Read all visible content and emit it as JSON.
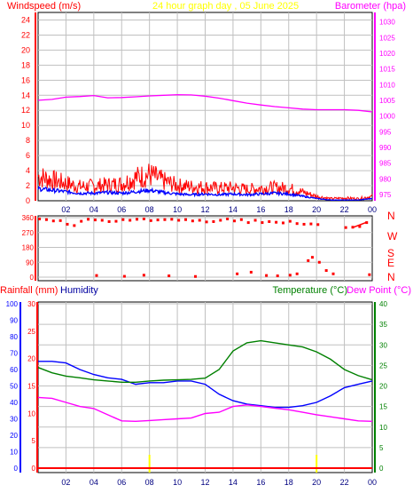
{
  "header": {
    "title": "24 hour graph day , 05 June 2025",
    "left_label": "Windspeed (m/s)",
    "right_label": "Barometer (hpa)"
  },
  "wind_dir_labels": [
    "N",
    "W",
    "S",
    "E",
    "N"
  ],
  "lower_header": {
    "rainfall": "Rainfall (mm)",
    "humidity": "Humidity",
    "temperature": "Temperature (°C)",
    "dew_point": "Dew Point (°C)"
  },
  "colors": {
    "windspeed": "#ff0000",
    "wind_avg": "#0000ff",
    "barometer": "#ff00ff",
    "wind_dir": "#ff0000",
    "rainfall": "#ff0000",
    "humidity": "#0000ff",
    "temperature": "#008000",
    "dew_point": "#ff00ff",
    "marker": "#ffff00"
  },
  "chart_data": [
    {
      "type": "line",
      "title": "24 hour graph day , 05 June 2025",
      "x_ticks": [
        "02",
        "04",
        "06",
        "08",
        "10",
        "12",
        "14",
        "16",
        "18",
        "20",
        "22",
        "00"
      ],
      "y_left": {
        "label": "Windspeed (m/s)",
        "ticks": [
          0,
          2,
          4,
          6,
          8,
          10,
          12,
          14,
          16,
          18,
          20,
          22,
          24
        ],
        "ylim": [
          0,
          25
        ]
      },
      "y_right": {
        "label": "Barometer (hpa)",
        "ticks": [
          975,
          980,
          985,
          990,
          995,
          1000,
          1005,
          1010,
          1015,
          1020,
          1025,
          1030
        ],
        "ylim": [
          973,
          1033
        ]
      },
      "grid": true,
      "series": [
        {
          "name": "Windspeed (m/s)",
          "axis": "left",
          "x": [
            0,
            1,
            2,
            3,
            4,
            5,
            6,
            7,
            8,
            9,
            10,
            11,
            12,
            13,
            14,
            15,
            16,
            17,
            18,
            19,
            20,
            21,
            22,
            23,
            24
          ],
          "y": [
            4.5,
            3.8,
            3.2,
            2.6,
            2.7,
            2.9,
            3.1,
            4.2,
            4.8,
            3.6,
            2.8,
            2.6,
            2.5,
            2.3,
            2.4,
            2.1,
            2.3,
            2.4,
            2.3,
            1.6,
            0.8,
            0.4,
            0.5,
            0.4,
            0.8
          ]
        },
        {
          "name": "Wind average",
          "axis": "left",
          "x": [
            0,
            1,
            2,
            3,
            4,
            5,
            6,
            7,
            8,
            9,
            10,
            11,
            12,
            13,
            14,
            15,
            16,
            17,
            18,
            19,
            20,
            21,
            22,
            23,
            24
          ],
          "y": [
            1.6,
            1.4,
            1.2,
            1.0,
            1.0,
            1.1,
            1.0,
            1.2,
            1.4,
            1.1,
            0.9,
            0.8,
            0.9,
            0.8,
            0.9,
            0.8,
            0.9,
            1.0,
            0.9,
            0.6,
            0.3,
            0.1,
            0.1,
            0.1,
            0.3
          ]
        },
        {
          "name": "Barometer (hpa)",
          "axis": "right",
          "x": [
            0,
            1,
            2,
            3,
            4,
            5,
            6,
            7,
            8,
            9,
            10,
            11,
            12,
            13,
            14,
            15,
            16,
            17,
            18,
            19,
            20,
            21,
            22,
            23,
            24
          ],
          "y": [
            1005.0,
            1005.3,
            1006.0,
            1006.2,
            1006.5,
            1005.8,
            1005.9,
            1006.1,
            1006.4,
            1006.6,
            1006.8,
            1006.7,
            1006.3,
            1005.7,
            1004.9,
            1004.1,
            1003.5,
            1003.0,
            1002.6,
            1002.2,
            1002.0,
            1002.0,
            1002.0,
            1001.8,
            1001.3
          ]
        }
      ]
    },
    {
      "type": "scatter",
      "title": "",
      "x_ticks": [
        "02",
        "04",
        "06",
        "08",
        "10",
        "12",
        "14",
        "16",
        "18",
        "20",
        "22",
        "00"
      ],
      "y_left": {
        "ticks": [
          0,
          90,
          180,
          270,
          360
        ],
        "ylim": [
          0,
          360
        ]
      },
      "y_right_labels": [
        "N",
        "W",
        "S",
        "E",
        "N"
      ],
      "grid": true,
      "series": [
        {
          "name": "Wind direction",
          "x": [
            0.1,
            0.6,
            1.1,
            1.6,
            2.1,
            2.6,
            3.1,
            3.6,
            4.1,
            4.6,
            5.1,
            5.6,
            6.1,
            6.6,
            7.1,
            7.6,
            8.1,
            8.6,
            9.1,
            9.6,
            10.1,
            10.6,
            11.1,
            11.6,
            12.1,
            12.6,
            13.1,
            13.6,
            14.1,
            14.6,
            15.1,
            15.6,
            16.1,
            16.6,
            17.1,
            17.6,
            18.1,
            18.6,
            19.1,
            19.6,
            20.1,
            22.1,
            22.6,
            23.1,
            23.6,
            14.3,
            15.3,
            16.4,
            17.2,
            18.1,
            18.6,
            19.4,
            19.7,
            20.2,
            20.7,
            21.2,
            23.8,
            4.2,
            6.2,
            7.6,
            9.4,
            11.3
          ],
          "y": [
            352,
            348,
            340,
            342,
            320,
            312,
            338,
            350,
            346,
            344,
            336,
            338,
            348,
            344,
            350,
            352,
            342,
            346,
            348,
            350,
            344,
            348,
            340,
            344,
            334,
            336,
            344,
            352,
            340,
            348,
            330,
            344,
            330,
            336,
            332,
            328,
            338,
            324,
            320,
            322,
            318,
            300,
            302,
            306,
            330,
            20,
            30,
            10,
            8,
            12,
            20,
            100,
            120,
            90,
            40,
            20,
            15,
            10,
            5,
            12,
            8,
            4
          ]
        }
      ]
    },
    {
      "type": "line",
      "title": "",
      "x_ticks": [
        "02",
        "04",
        "06",
        "08",
        "10",
        "12",
        "14",
        "16",
        "18",
        "20",
        "22",
        "00"
      ],
      "y_rain": {
        "label": "Rainfall (mm)",
        "ticks": [
          0,
          5,
          10,
          15,
          20,
          25,
          30
        ],
        "ylim": [
          0,
          30
        ]
      },
      "y_humidity": {
        "label": "Humidity",
        "ticks": [
          0,
          10,
          20,
          30,
          40,
          50,
          60,
          70,
          80,
          90,
          100
        ],
        "ylim": [
          0,
          100
        ]
      },
      "y_temp": {
        "label": "Temperature (°C)",
        "ticks": [
          0,
          5,
          10,
          15,
          20,
          25,
          30,
          35,
          40
        ],
        "ylim": [
          0,
          40
        ]
      },
      "grid": true,
      "series": [
        {
          "name": "Humidity",
          "axis": "humidity",
          "x": [
            0,
            1,
            2,
            3,
            4,
            5,
            6,
            7,
            8,
            9,
            10,
            11,
            12,
            13,
            14,
            15,
            16,
            17,
            18,
            19,
            20,
            21,
            22,
            23,
            24
          ],
          "y": [
            65,
            65,
            64,
            60,
            57,
            55,
            54,
            51,
            52,
            52,
            53,
            53,
            51,
            45,
            41,
            39,
            38,
            37,
            37,
            38,
            40,
            44,
            49,
            51,
            53
          ]
        },
        {
          "name": "Temperature (°C)",
          "axis": "temp",
          "x": [
            0,
            1,
            2,
            3,
            4,
            5,
            6,
            7,
            8,
            9,
            10,
            11,
            12,
            13,
            14,
            15,
            16,
            17,
            18,
            19,
            20,
            21,
            22,
            23,
            24
          ],
          "y": [
            24.5,
            23.2,
            22.4,
            22.0,
            21.5,
            21.2,
            20.9,
            20.9,
            21.2,
            21.4,
            21.5,
            21.6,
            21.9,
            24.0,
            28.5,
            30.5,
            31.0,
            30.5,
            30.0,
            29.5,
            28.3,
            26.5,
            24.0,
            22.5,
            21.5
          ]
        },
        {
          "name": "Dew Point (°C)",
          "axis": "temp",
          "x": [
            0,
            1,
            2,
            3,
            4,
            5,
            6,
            7,
            8,
            9,
            10,
            11,
            12,
            13,
            14,
            15,
            16,
            17,
            18,
            19,
            20,
            21,
            22,
            23,
            24
          ],
          "y": [
            17.2,
            17.0,
            16.0,
            15.0,
            14.5,
            13.0,
            11.5,
            11.4,
            11.6,
            11.8,
            12.0,
            12.2,
            13.3,
            13.6,
            15.0,
            15.4,
            15.0,
            14.6,
            14.2,
            13.6,
            13.0,
            12.5,
            12.0,
            11.5,
            11.4
          ]
        },
        {
          "name": "Rainfall (mm)",
          "axis": "rain",
          "x": [
            0,
            24
          ],
          "y": [
            0,
            0
          ]
        }
      ]
    }
  ]
}
